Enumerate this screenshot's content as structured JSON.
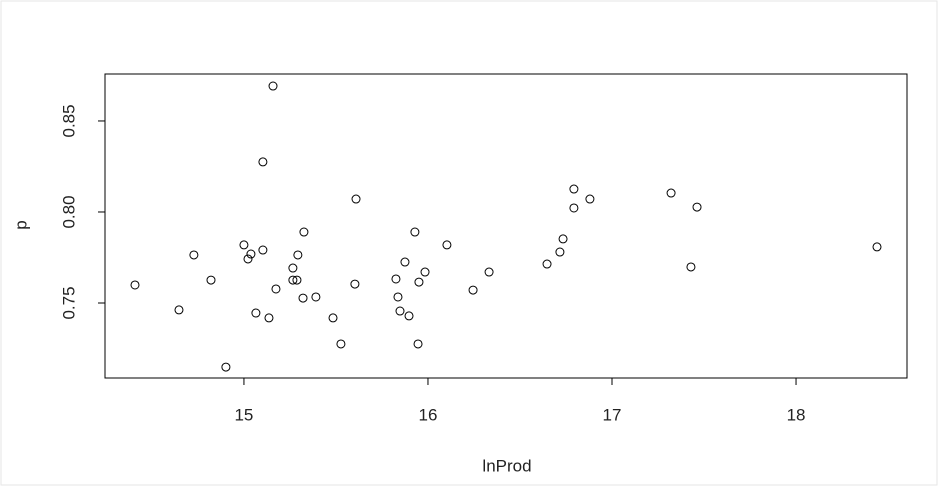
{
  "chart_data": {
    "type": "scatter",
    "xlabel": "lnProd",
    "ylabel": "p",
    "x": [
      14.408,
      14.647,
      14.728,
      14.821,
      14.902,
      15.0,
      15.022,
      15.038,
      15.065,
      15.103,
      15.103,
      15.136,
      15.158,
      15.174,
      15.266,
      15.266,
      15.288,
      15.293,
      15.326,
      15.321,
      15.391,
      15.484,
      15.527,
      15.603,
      15.609,
      15.826,
      15.837,
      15.848,
      15.875,
      15.897,
      15.929,
      15.946,
      15.951,
      15.984,
      16.103,
      16.245,
      16.332,
      16.647,
      16.717,
      16.734,
      16.793,
      16.793,
      16.88,
      17.321,
      17.429,
      17.462,
      18.44
    ],
    "series": [
      {
        "color": "#000000",
        "values": [
          0.7599,
          0.7462,
          0.7764,
          0.7626,
          0.7148,
          0.7819,
          0.7742,
          0.7769,
          0.7445,
          0.7791,
          0.8275,
          0.7418,
          0.8692,
          0.7577,
          0.7692,
          0.7626,
          0.7626,
          0.7764,
          0.789,
          0.7527,
          0.7533,
          0.7418,
          0.7275,
          0.7604,
          0.8071,
          0.7632,
          0.7533,
          0.7456,
          0.7725,
          0.7429,
          0.789,
          0.7275,
          0.7615,
          0.767,
          0.7819,
          0.7571,
          0.767,
          0.7714,
          0.778,
          0.7852,
          0.8126,
          0.8022,
          0.8071,
          0.8104,
          0.7698,
          0.8027,
          0.7808
        ]
      }
    ],
    "xlim": [
      14.245,
      18.603
    ],
    "ylim": [
      0.7088,
      0.8758
    ],
    "xticks": [
      15,
      16,
      17,
      18
    ],
    "yticks": [
      0.75,
      {
        "value": 0.8,
        "label": "0.80"
      },
      0.85
    ],
    "grid": false
  }
}
